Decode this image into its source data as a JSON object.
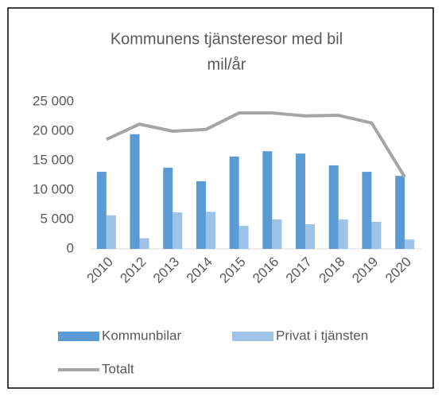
{
  "chart_data": {
    "type": "bar_line",
    "title": "Kommunens tjänsteresor med bil",
    "subtitle": "mil/år",
    "categories": [
      "2010",
      "2012",
      "2013",
      "2014",
      "2015",
      "2016",
      "2017",
      "2018",
      "2019",
      "2020"
    ],
    "series": [
      {
        "name": "Kommunbilar",
        "type": "bar",
        "color": "#5b9bd5",
        "values": [
          13100,
          19500,
          13800,
          11500,
          15700,
          16600,
          16200,
          14200,
          13100,
          12400
        ]
      },
      {
        "name": "Privat i tjänsten",
        "type": "bar",
        "color": "#9dc3e6",
        "values": [
          5700,
          1800,
          6200,
          6300,
          3900,
          5000,
          4200,
          5000,
          4600,
          1600
        ]
      },
      {
        "name": "Totalt",
        "type": "line",
        "color": "#a5a5a5",
        "values": [
          18600,
          21200,
          20000,
          20300,
          23100,
          23100,
          22600,
          22700,
          21400,
          12200
        ]
      }
    ],
    "ylim": [
      0,
      25000
    ],
    "yticks": [
      0,
      {
        "value": 5000,
        "label": "5 000"
      },
      {
        "value": 10000,
        "label": "10 000"
      },
      {
        "value": 15000,
        "label": "15 000"
      },
      {
        "value": 20000,
        "label": "20 000"
      },
      {
        "value": 25000,
        "label": "25 000"
      }
    ],
    "grid": false
  }
}
